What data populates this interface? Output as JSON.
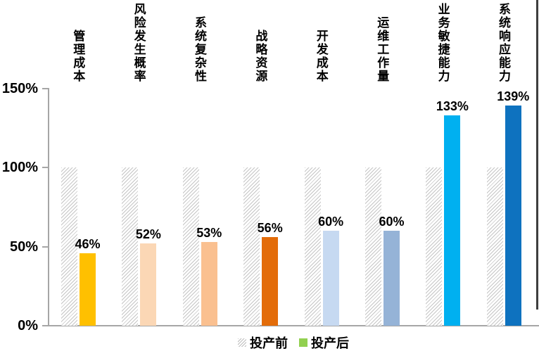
{
  "chart_data": {
    "type": "bar",
    "title": "",
    "categories": [
      "管理成本",
      "风险发生概率",
      "系统复杂性",
      "战略资源",
      "开发成本",
      "运维工作量",
      "业务敏捷能力",
      "系统响应能力"
    ],
    "series": [
      {
        "name": "投产前",
        "style": "hatched-gray",
        "values": [
          100,
          100,
          100,
          100,
          100,
          100,
          100,
          100
        ]
      },
      {
        "name": "投产后",
        "values": [
          46,
          52,
          53,
          56,
          60,
          60,
          133,
          139
        ],
        "colors": [
          "#FFC000",
          "#FBD7B5",
          "#FAC090",
          "#E36C09",
          "#C6D9F1",
          "#95B3D7",
          "#00B0F0",
          "#0E72BF"
        ]
      }
    ],
    "value_labels": [
      "46%",
      "52%",
      "53%",
      "56%",
      "60%",
      "60%",
      "133%",
      "139%"
    ],
    "y_ticks": [
      {
        "label": "0%",
        "value": 0
      },
      {
        "label": "50%",
        "value": 50
      },
      {
        "label": "100%",
        "value": 100
      },
      {
        "label": "150%",
        "value": 150
      }
    ],
    "ylim": [
      0,
      150
    ],
    "grid": "off",
    "legend_position": "bottom-center",
    "legend": [
      {
        "label": "投产前",
        "swatch": "hatched"
      },
      {
        "label": "投产后",
        "swatch_color": "#92D050"
      }
    ],
    "colors": {
      "hatch_line": "#C5C5C5",
      "axis": "#A6A6A6",
      "text": "#000000",
      "right_border": "#3D3D3D"
    }
  }
}
